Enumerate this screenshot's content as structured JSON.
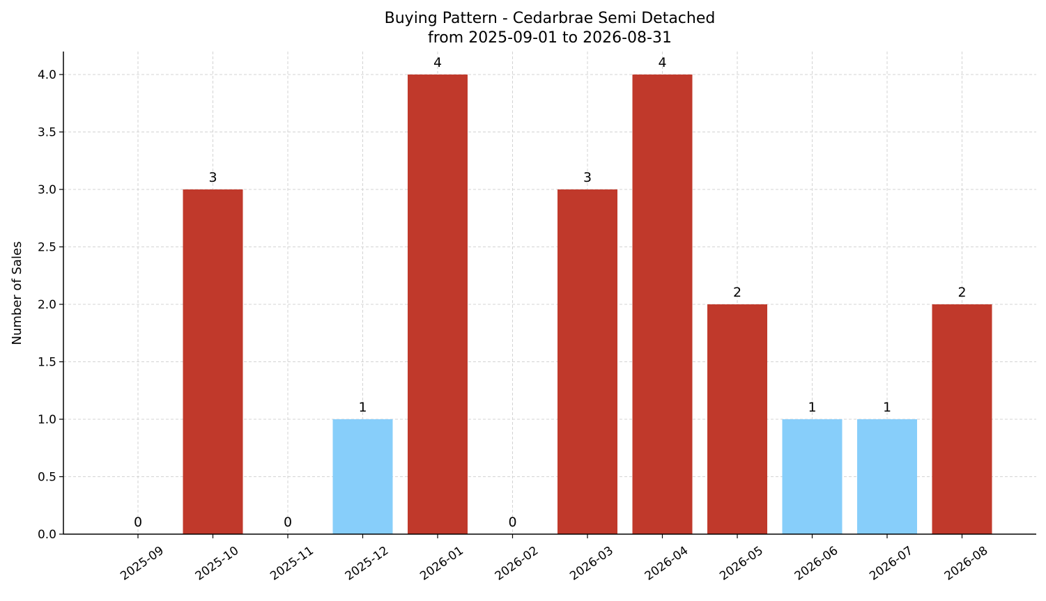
{
  "chart_data": {
    "type": "bar",
    "title": "Buying Pattern - Cedarbrae Semi Detached",
    "subtitle": "from 2025-09-01 to 2026-08-31",
    "xlabel": "",
    "ylabel": "Number of Sales",
    "categories": [
      "2025-09",
      "2025-10",
      "2025-11",
      "2025-12",
      "2026-01",
      "2026-02",
      "2026-03",
      "2026-04",
      "2026-05",
      "2026-06",
      "2026-07",
      "2026-08"
    ],
    "values": [
      0,
      3,
      0,
      1,
      4,
      0,
      3,
      4,
      2,
      1,
      1,
      2
    ],
    "value_labels": [
      "0",
      "3",
      "0",
      "1",
      "4",
      "0",
      "3",
      "4",
      "2",
      "1",
      "1",
      "2"
    ],
    "bar_colors": [
      "#c0392b",
      "#c0392b",
      "#c0392b",
      "#87cefa",
      "#c0392b",
      "#c0392b",
      "#c0392b",
      "#c0392b",
      "#c0392b",
      "#87cefa",
      "#87cefa",
      "#c0392b"
    ],
    "ylim": [
      0,
      4.2
    ],
    "yticks": [
      "0.0",
      "0.5",
      "1.0",
      "1.5",
      "2.0",
      "2.5",
      "3.0",
      "3.5",
      "4.0"
    ],
    "grid": true,
    "colors": {
      "high": "#c0392b",
      "low": "#87cefa"
    }
  }
}
